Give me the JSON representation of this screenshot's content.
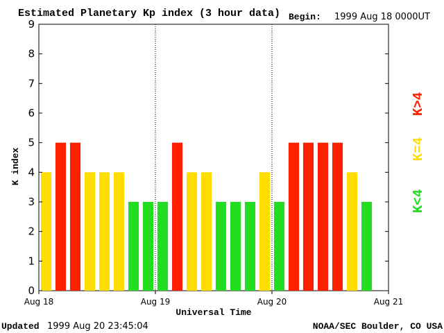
{
  "header": {
    "title": "Estimated Planetary Kp index (3 hour data)",
    "begin_label": "Begin:",
    "begin_value": "1999 Aug 18 0000UT"
  },
  "footer": {
    "updated_label": "Updated",
    "updated_value": "1999 Aug 20 23:45:04",
    "credit": "NOAA/SEC Boulder, CO USA"
  },
  "legend": {
    "high": {
      "text": "K>4",
      "color": "#ff2000"
    },
    "equal": {
      "text": "K=4",
      "color": "#ffdd00"
    },
    "low": {
      "text": "K<4",
      "color": "#22dd22"
    }
  },
  "chart_data": {
    "type": "bar",
    "title": "Estimated Planetary Kp index (3 hour data)",
    "xlabel": "Universal Time",
    "ylabel": "K index",
    "ylim": [
      0,
      9
    ],
    "yticks": [
      "0",
      "1",
      "2",
      "3",
      "4",
      "5",
      "6",
      "7",
      "8",
      "9"
    ],
    "xticks": [
      "Aug 18",
      "Aug 19",
      "Aug 20",
      "Aug 21"
    ],
    "day_separators": [
      "Aug 19",
      "Aug 20"
    ],
    "values": [
      4,
      5,
      5,
      4,
      4,
      4,
      3,
      3,
      3,
      5,
      4,
      4,
      3,
      3,
      3,
      4,
      3,
      5,
      5,
      5,
      5,
      4,
      3
    ],
    "colors": {
      "low": "#22dd22",
      "equal": "#ffdd00",
      "high": "#ff2000"
    }
  }
}
